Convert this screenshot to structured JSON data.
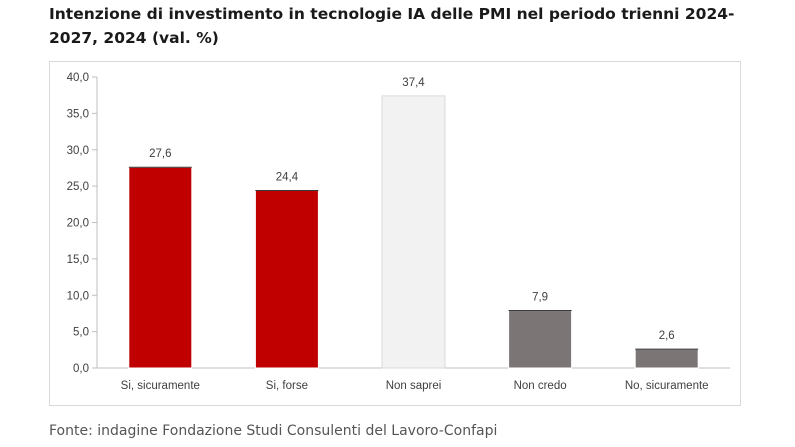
{
  "chart_data": {
    "type": "bar",
    "title": "Intenzione di investimento in tecnologie IA delle PMI nel periodo trienni 2024-2027, 2024 (val. %)",
    "categories": [
      "Si, sicuramente",
      "Si, forse",
      "Non saprei",
      "Non credo",
      "No, sicuramente"
    ],
    "values": [
      27.6,
      24.4,
      37.4,
      7.9,
      2.6
    ],
    "value_labels": [
      "27,6",
      "24,4",
      "37,4",
      "7,9",
      "2,6"
    ],
    "bar_colors": [
      "#c00000",
      "#c00000",
      "#f2f2f2",
      "#7b7575",
      "#7b7575"
    ],
    "ylim": [
      0,
      40
    ],
    "yticks": [
      0,
      5,
      10,
      15,
      20,
      25,
      30,
      35,
      40
    ],
    "ytick_labels": [
      "0,0",
      "5,0",
      "10,0",
      "15,0",
      "20,0",
      "25,0",
      "30,0",
      "35,0",
      "40,0"
    ],
    "xlabel": "",
    "ylabel": "",
    "grid": false,
    "legend": "none"
  },
  "source": "Fonte: indagine Fondazione Studi Consulenti del Lavoro-Confapi"
}
